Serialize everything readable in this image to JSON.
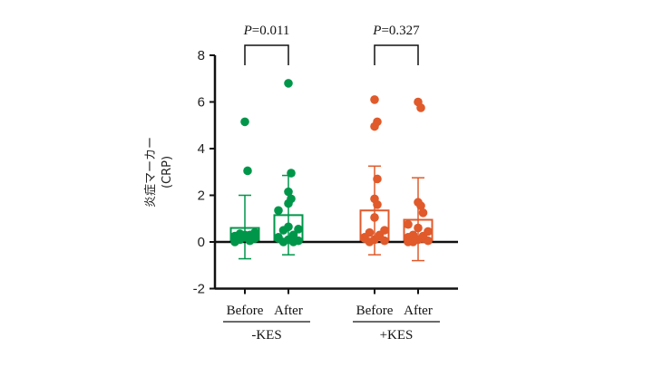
{
  "chart_data": {
    "type": "bar",
    "title": "",
    "ylabel": "炎症マーカー",
    "ylabel2": "(CRP)",
    "ylim": [
      -2,
      8
    ],
    "yticks": [
      -2,
      0,
      2,
      4,
      6,
      8
    ],
    "colors": {
      "-KES": "#00964a",
      "+KES": "#e05a2b"
    },
    "groups": [
      {
        "label": "-KES",
        "pvalue_label": "P",
        "pvalue_text": "=0.011",
        "bars": [
          {
            "category": "Before",
            "mean": 0.6,
            "sd_upper": 2.0,
            "sd_lower": -0.72,
            "points": [
              5.15,
              3.05,
              0.4,
              0.35,
              0.3,
              0.25,
              0.2,
              0.15,
              0.1,
              0.05,
              0.0,
              0.3,
              0.2
            ]
          },
          {
            "category": "After",
            "mean": 1.15,
            "sd_upper": 2.85,
            "sd_lower": -0.55,
            "points": [
              6.8,
              2.95,
              2.15,
              1.85,
              1.65,
              1.35,
              0.65,
              0.55,
              0.5,
              0.3,
              0.2,
              0.1,
              0.05,
              0.0,
              0.0,
              0.15
            ]
          }
        ]
      },
      {
        "label": "+KES",
        "pvalue_label": "P",
        "pvalue_text": "=0.327",
        "bars": [
          {
            "category": "Before",
            "mean": 1.35,
            "sd_upper": 3.25,
            "sd_lower": -0.55,
            "points": [
              6.1,
              5.15,
              4.95,
              2.7,
              1.85,
              1.6,
              1.05,
              0.5,
              0.4,
              0.3,
              0.2,
              0.1,
              0.05,
              0.0,
              0.25,
              0.15
            ]
          },
          {
            "category": "After",
            "mean": 0.95,
            "sd_upper": 2.75,
            "sd_lower": -0.8,
            "points": [
              6.0,
              5.75,
              1.7,
              1.55,
              1.25,
              0.75,
              0.6,
              0.45,
              0.3,
              0.25,
              0.2,
              0.1,
              0.05,
              0.0,
              0.15,
              0.0
            ]
          }
        ]
      }
    ]
  }
}
